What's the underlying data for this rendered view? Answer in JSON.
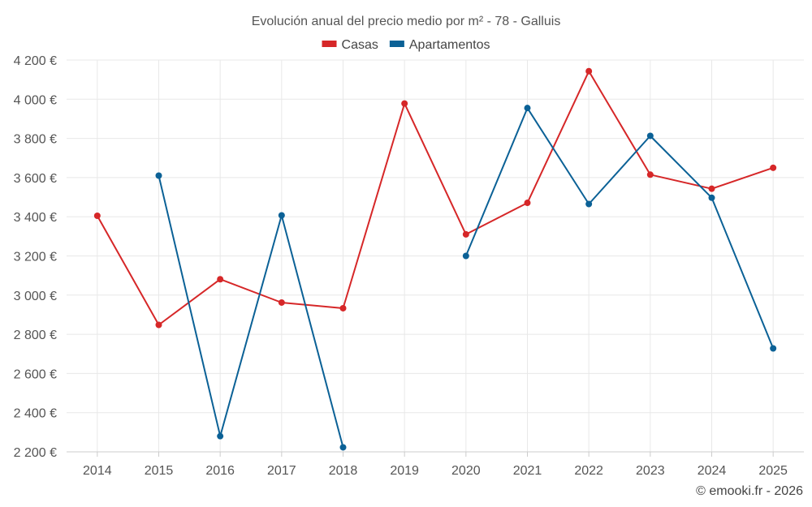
{
  "chart_data": {
    "type": "line",
    "title": "Evolución anual del precio medio por m² - 78 - Galluis",
    "categories": [
      "2014",
      "2015",
      "2016",
      "2017",
      "2018",
      "2019",
      "2020",
      "2021",
      "2022",
      "2023",
      "2024",
      "2025"
    ],
    "series": [
      {
        "name": "Casas",
        "color": "#d62728",
        "values": [
          3405,
          2848,
          3081,
          2962,
          2933,
          3978,
          3310,
          3471,
          4143,
          3615,
          3543,
          3650
        ]
      },
      {
        "name": "Apartamentos",
        "color": "#0b6196",
        "values": [
          null,
          3610,
          2280,
          3407,
          2223,
          null,
          3200,
          3955,
          3465,
          3813,
          3497,
          2728
        ]
      }
    ],
    "ylim": [
      2200,
      4200
    ],
    "yticks": [
      2200,
      2400,
      2600,
      2800,
      3000,
      3200,
      3400,
      3600,
      3800,
      4000,
      4200
    ],
    "ytick_labels": [
      "2 200 €",
      "2 400 €",
      "2 600 €",
      "2 800 €",
      "3 000 €",
      "3 200 €",
      "3 400 €",
      "3 600 €",
      "3 800 €",
      "4 000 €",
      "4 200 €"
    ],
    "legend_position": "top-center",
    "grid": true
  },
  "credit": "© emooki.fr - 2026"
}
